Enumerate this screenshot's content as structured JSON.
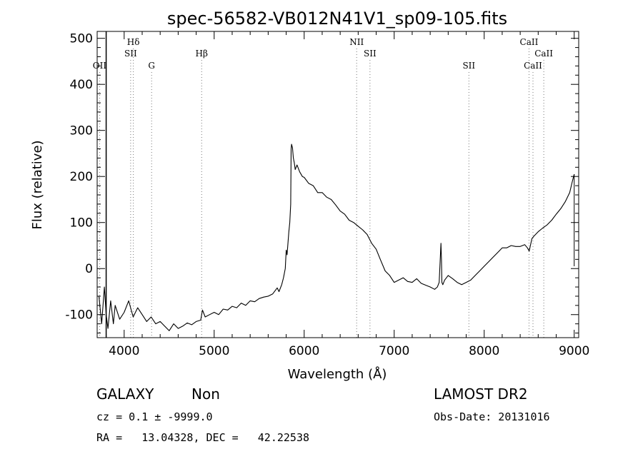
{
  "chart_data": {
    "type": "line",
    "title": "spec-56582-VB012N41V1_sp09-105.fits",
    "xlabel": "Wavelength (Å)",
    "ylabel": "Flux (relative)",
    "xlim": [
      3700,
      9050
    ],
    "ylim": [
      -150,
      515
    ],
    "x_ticks": [
      4000,
      5000,
      6000,
      7000,
      8000,
      9000
    ],
    "y_ticks": [
      -100,
      0,
      100,
      200,
      300,
      400,
      500
    ],
    "grid": false,
    "series": [
      {
        "color": "#000000",
        "x": [
          3720,
          3750,
          3780,
          3800,
          3820,
          3850,
          3880,
          3900,
          3950,
          4000,
          4050,
          4100,
          4150,
          4200,
          4250,
          4300,
          4350,
          4400,
          4450,
          4500,
          4550,
          4600,
          4650,
          4700,
          4750,
          4800,
          4850,
          4870,
          4900,
          4950,
          5000,
          5050,
          5100,
          5150,
          5200,
          5250,
          5300,
          5350,
          5400,
          5450,
          5500,
          5550,
          5600,
          5650,
          5700,
          5720,
          5750,
          5770,
          5790,
          5800,
          5810,
          5830,
          5840,
          5850,
          5855,
          5860,
          5870,
          5880,
          5890,
          5900,
          5920,
          5950,
          5980,
          6000,
          6050,
          6100,
          6150,
          6200,
          6250,
          6300,
          6350,
          6400,
          6450,
          6500,
          6550,
          6600,
          6650,
          6700,
          6750,
          6800,
          6850,
          6900,
          6950,
          7000,
          7050,
          7100,
          7150,
          7200,
          7250,
          7300,
          7350,
          7400,
          7450,
          7480,
          7500,
          7520,
          7525,
          7530,
          7540,
          7560,
          7600,
          7650,
          7700,
          7750,
          7800,
          7850,
          7900,
          7950,
          8000,
          8050,
          8100,
          8150,
          8200,
          8250,
          8300,
          8350,
          8400,
          8450,
          8480,
          8500,
          8530,
          8550,
          8600,
          8650,
          8700,
          8750,
          8800,
          8850,
          8900,
          8950,
          8980,
          9000
        ],
        "y": [
          -60,
          -120,
          -40,
          -100,
          -130,
          -70,
          -120,
          -80,
          -110,
          -95,
          -70,
          -105,
          -85,
          -100,
          -115,
          -105,
          -120,
          -115,
          -125,
          -135,
          -120,
          -130,
          -125,
          -118,
          -122,
          -115,
          -112,
          -90,
          -105,
          -100,
          -95,
          -100,
          -88,
          -90,
          -82,
          -85,
          -75,
          -80,
          -70,
          -72,
          -65,
          -62,
          -60,
          -55,
          -42,
          -50,
          -35,
          -20,
          0,
          40,
          30,
          80,
          100,
          140,
          260,
          270,
          262,
          240,
          230,
          215,
          225,
          210,
          200,
          198,
          185,
          180,
          165,
          165,
          155,
          150,
          138,
          125,
          118,
          105,
          100,
          92,
          84,
          74,
          55,
          42,
          18,
          -5,
          -15,
          -30,
          -25,
          -20,
          -28,
          -30,
          -22,
          -32,
          -36,
          -40,
          -45,
          -40,
          -30,
          55,
          20,
          -30,
          -35,
          -25,
          -15,
          -22,
          -30,
          -35,
          -30,
          -25,
          -15,
          -5,
          5,
          15,
          25,
          35,
          45,
          45,
          50,
          48,
          48,
          52,
          45,
          38,
          65,
          70,
          80,
          88,
          95,
          105,
          118,
          130,
          145,
          165,
          190,
          205
        ]
      }
    ],
    "lines": {
      "OII": {
        "x": 3727,
        "label": "OII",
        "row": 3
      },
      "Hd": {
        "x": 4102,
        "label": "Hδ",
        "row": 1
      },
      "SII_a": {
        "x": 4072,
        "label": "SII",
        "row": 2
      },
      "G": {
        "x": 4305,
        "label": "G",
        "row": 3
      },
      "Hb": {
        "x": 4861,
        "label": "Hβ",
        "row": 2
      },
      "NII": {
        "x": 6583,
        "label": "NII",
        "row": 1
      },
      "SII_b": {
        "x": 6731,
        "label": "SII",
        "row": 2
      },
      "SII_c": {
        "x": 7830,
        "label": "SII",
        "row": 3
      },
      "CaII_a": {
        "x": 8498,
        "label": "CaII",
        "row": 1
      },
      "CaII_b": {
        "x": 8542,
        "label": "CaII",
        "row": 3
      },
      "CaII_c": {
        "x": 8662,
        "label": "CaII",
        "row": 2
      }
    }
  },
  "info": {
    "object_class": "GALAXY",
    "subclass": "Non",
    "survey": "LAMOST DR2",
    "cz": "cz = 0.1 ± -9999.0",
    "obs_date": "Obs-Date: 20131016",
    "radec": "RA =   13.04328, DEC =   42.22538"
  }
}
